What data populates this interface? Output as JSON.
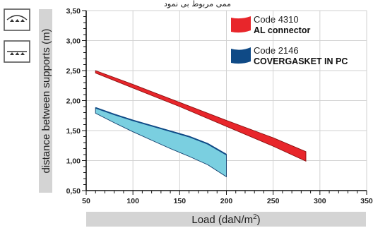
{
  "header": {
    "cropped_text": "ممی مربوط بی نمود"
  },
  "mode_icons": [
    {
      "name": "arched-profile-icon"
    },
    {
      "name": "flat-profile-icon"
    }
  ],
  "chart_data": {
    "type": "area",
    "title": "",
    "xlabel": "Load (daN/m",
    "xlabel_sup": "2",
    "xlabel_end": ")",
    "ylabel": "distance between supports (m)",
    "xlim": [
      50,
      350
    ],
    "ylim": [
      0.5,
      3.5
    ],
    "x_ticks": [
      50,
      100,
      150,
      200,
      250,
      300,
      350
    ],
    "x_tick_labels": [
      "50",
      "100",
      "150",
      "200",
      "250",
      "300",
      "350"
    ],
    "y_ticks": [
      0.5,
      1.0,
      1.5,
      2.0,
      2.5,
      3.0,
      3.5
    ],
    "y_tick_labels": [
      "0,50",
      "1,00",
      "1,50",
      "2,00",
      "2,50",
      "3,00",
      "3,50"
    ],
    "grid": true,
    "legend_position": "top-right",
    "series": [
      {
        "code": "Code 4310",
        "name": "AL connector",
        "color": "#e8262b",
        "upper": {
          "x": [
            60,
            100,
            150,
            200,
            250,
            285
          ],
          "y": [
            2.5,
            2.27,
            1.97,
            1.67,
            1.38,
            1.15
          ]
        },
        "lower": {
          "x": [
            60,
            100,
            150,
            200,
            250,
            285
          ],
          "y": [
            2.46,
            2.21,
            1.9,
            1.57,
            1.24,
            0.99
          ]
        }
      },
      {
        "code": "Code 2146",
        "name": "COVERGASKET IN PC",
        "color": "#7acfe0",
        "legend_color": "#0f4a86",
        "upper": {
          "x": [
            60,
            80,
            100,
            120,
            140,
            160,
            180,
            200
          ],
          "y": [
            1.88,
            1.77,
            1.67,
            1.58,
            1.49,
            1.4,
            1.28,
            1.1
          ]
        },
        "lower": {
          "x": [
            60,
            80,
            100,
            120,
            140,
            160,
            180,
            200
          ],
          "y": [
            1.79,
            1.63,
            1.48,
            1.34,
            1.2,
            1.07,
            0.93,
            0.73
          ]
        }
      }
    ]
  }
}
